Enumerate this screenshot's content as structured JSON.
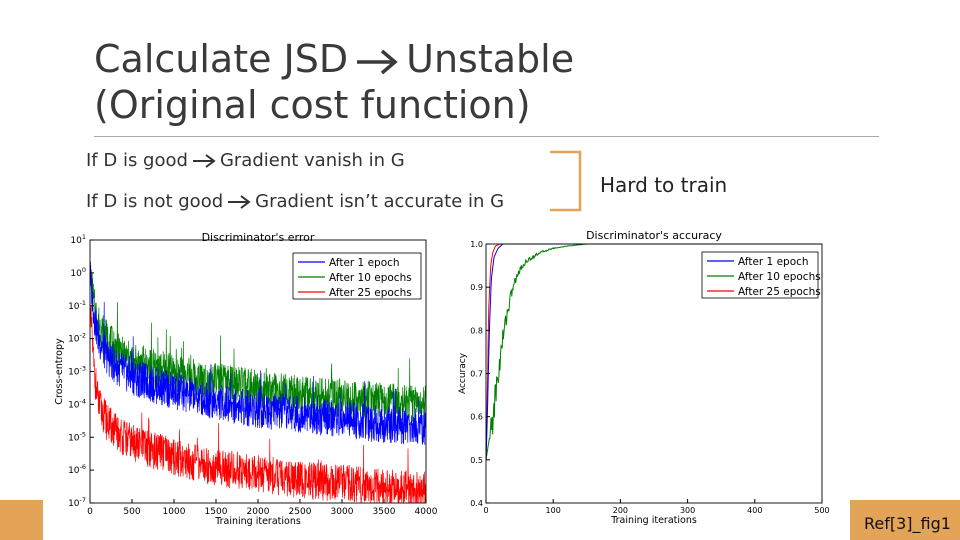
{
  "slide": {
    "title_line1_left": "Calculate JSD",
    "title_line1_right": "Unstable",
    "title_line2": "(Original cost function)",
    "bullet1_left": "If D is good",
    "bullet1_right": "Gradient vanish in G",
    "bullet2_left": "If D is not good",
    "bullet2_right": "Gradient isn’t accurate in G",
    "conclusion": "Hard to train",
    "reference": "Ref[3]_fig1",
    "arrow_icon": "right-arrow-icon",
    "accent_color": "#e3a458"
  },
  "chart_data": [
    {
      "type": "line",
      "title": "Discriminator's error",
      "xlabel": "Training iterations",
      "ylabel": "Cross-entropy",
      "yscale": "log",
      "xlim": [
        0,
        4000
      ],
      "ylim": [
        1e-07,
        10
      ],
      "x_ticks": [
        "0",
        "500",
        "1000",
        "1500",
        "2000",
        "2500",
        "3000",
        "3500",
        "4000"
      ],
      "y_ticks": [
        "10^-7",
        "10^-6",
        "10^-5",
        "10^-4",
        "10^-3",
        "10^-2",
        "10^-1",
        "10^0",
        "10^1"
      ],
      "legend_position": "top-right",
      "series": [
        {
          "name": "After 1 epoch",
          "color": "#0000ff",
          "x": [
            0,
            50,
            100,
            200,
            300,
            400,
            500,
            750,
            1000,
            1500,
            2000,
            2500,
            3000,
            3500,
            4000
          ],
          "y": [
            1,
            0.05,
            0.01,
            0.003,
            0.0015,
            0.001,
            0.0007,
            0.0004,
            0.00025,
            0.00012,
            7e-05,
            5e-05,
            3.5e-05,
            2.5e-05,
            2e-05
          ]
        },
        {
          "name": "After 10 epochs",
          "color": "#008000",
          "x": [
            0,
            50,
            100,
            200,
            300,
            400,
            500,
            750,
            1000,
            1500,
            2000,
            2500,
            3000,
            3500,
            4000
          ],
          "y": [
            1,
            0.1,
            0.03,
            0.01,
            0.005,
            0.003,
            0.002,
            0.0013,
            0.0009,
            0.0005,
            0.0003,
            0.0002,
            0.00015,
            0.00012,
            0.0001
          ]
        },
        {
          "name": "After 25 epochs",
          "color": "#ff0000",
          "x": [
            0,
            50,
            100,
            200,
            300,
            400,
            500,
            750,
            1000,
            1500,
            2000,
            2500,
            3000,
            3500,
            4000
          ],
          "y": [
            0.1,
            0.001,
            0.0001,
            3e-05,
            1.5e-05,
            1e-05,
            7e-06,
            4e-06,
            2.5e-06,
            1.2e-06,
            8e-07,
            5e-07,
            4e-07,
            3e-07,
            2.5e-07
          ]
        }
      ]
    },
    {
      "type": "line",
      "title": "Discriminator's accuracy",
      "xlabel": "Training iterations",
      "ylabel": "Accuracy",
      "xlim": [
        0,
        500
      ],
      "ylim": [
        0.4,
        1.0
      ],
      "x_ticks": [
        "0",
        "100",
        "200",
        "300",
        "400",
        "500"
      ],
      "y_ticks": [
        "0.4",
        "0.5",
        "0.6",
        "0.7",
        "0.8",
        "0.9",
        "1.0"
      ],
      "legend_position": "top-right",
      "series": [
        {
          "name": "After 1 epoch",
          "color": "#0000ff",
          "x": [
            0,
            2,
            5,
            8,
            12,
            18,
            25,
            500
          ],
          "y": [
            0.5,
            0.6,
            0.8,
            0.92,
            0.97,
            0.99,
            1.0,
            1.0
          ]
        },
        {
          "name": "After 10 epochs",
          "color": "#008000",
          "x": [
            0,
            5,
            10,
            15,
            20,
            25,
            30,
            40,
            50,
            60,
            70,
            80,
            100,
            120,
            150,
            200,
            500
          ],
          "y": [
            0.5,
            0.55,
            0.6,
            0.66,
            0.72,
            0.78,
            0.83,
            0.9,
            0.94,
            0.96,
            0.97,
            0.98,
            0.99,
            0.995,
            1.0,
            1.0,
            1.0
          ]
        },
        {
          "name": "After 25 epochs",
          "color": "#ff0000",
          "x": [
            0,
            2,
            4,
            7,
            10,
            14,
            20,
            500
          ],
          "y": [
            0.5,
            0.65,
            0.85,
            0.95,
            0.98,
            0.995,
            1.0,
            1.0
          ]
        }
      ]
    }
  ]
}
